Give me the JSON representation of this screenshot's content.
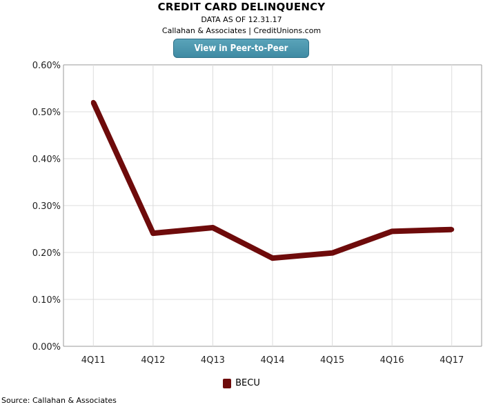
{
  "header": {
    "title": "CREDIT CARD DELINQUENCY",
    "subtitle": "DATA AS OF 12.31.17",
    "credit": "Callahan & Associates | CreditUnions.com",
    "button_label": "View in Peer-to-Peer"
  },
  "chart_data": {
    "type": "line",
    "title": "CREDIT CARD DELINQUENCY",
    "categories": [
      "4Q11",
      "4Q12",
      "4Q13",
      "4Q14",
      "4Q15",
      "4Q16",
      "4Q17"
    ],
    "series": [
      {
        "name": "BECU",
        "color": "#6e0b0b",
        "values": [
          0.52,
          0.241,
          0.253,
          0.188,
          0.199,
          0.245,
          0.249
        ]
      }
    ],
    "ylim": [
      0,
      0.6
    ],
    "yticks": [
      0,
      0.1,
      0.2,
      0.3,
      0.4,
      0.5,
      0.6
    ],
    "ytick_labels": [
      "0.00%",
      "0.10%",
      "0.20%",
      "0.30%",
      "0.40%",
      "0.50%",
      "0.60%"
    ],
    "grid": true,
    "legend_position": "bottom"
  },
  "legend": {
    "label": "BECU"
  },
  "footer": {
    "source": "Source: Callahan & Associates"
  }
}
